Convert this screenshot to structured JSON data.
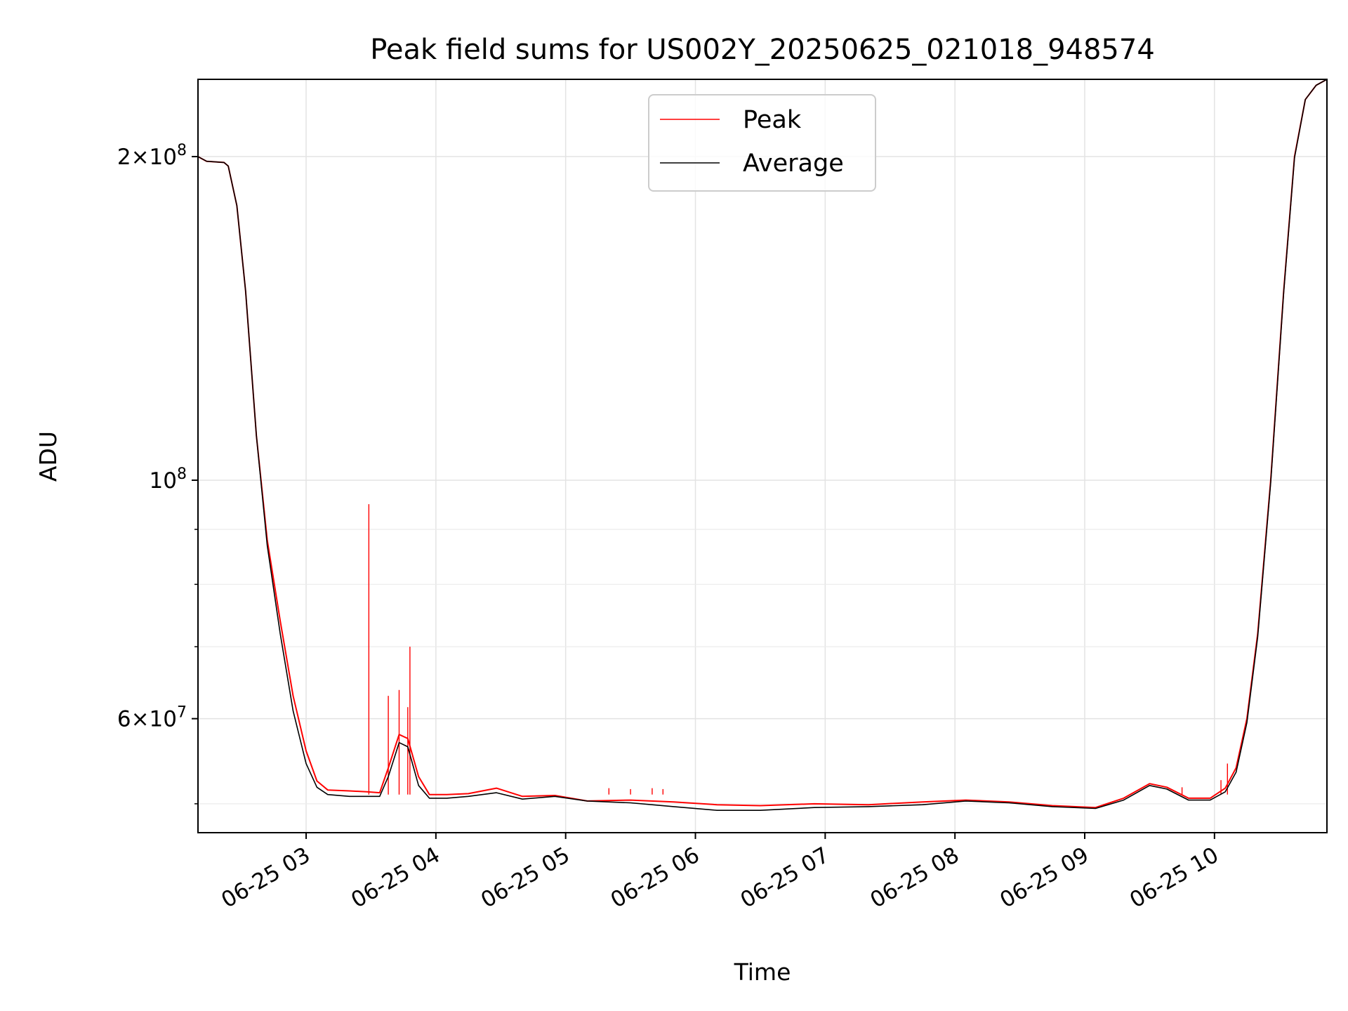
{
  "chart_data": {
    "type": "line",
    "title": "Peak field sums for US002Y_20250625_021018_948574",
    "xlabel": "Time",
    "ylabel": "ADU",
    "y_scale": "log",
    "grid": true,
    "legend_position": "top-center",
    "x_axis_type": "datetime",
    "x_range": [
      "2025-06-25T02:10",
      "2025-06-25T10:52"
    ],
    "ylim": [
      47000000,
      236000000
    ],
    "x_ticks": [
      {
        "t": "2025-06-25T03:00",
        "label": "06-25 03"
      },
      {
        "t": "2025-06-25T04:00",
        "label": "06-25 04"
      },
      {
        "t": "2025-06-25T05:00",
        "label": "06-25 05"
      },
      {
        "t": "2025-06-25T06:00",
        "label": "06-25 06"
      },
      {
        "t": "2025-06-25T07:00",
        "label": "06-25 07"
      },
      {
        "t": "2025-06-25T08:00",
        "label": "06-25 08"
      },
      {
        "t": "2025-06-25T09:00",
        "label": "06-25 09"
      },
      {
        "t": "2025-06-25T10:00",
        "label": "06-25 10"
      }
    ],
    "y_major_ticks": [
      {
        "value": 200000000,
        "mantissa": "2",
        "exponent": "8"
      },
      {
        "value": 100000000,
        "mantissa": "",
        "exponent": "8"
      },
      {
        "value": 60000000,
        "mantissa": "6",
        "exponent": "7"
      }
    ],
    "y_minor_ticks": [
      50000000,
      70000000,
      80000000,
      90000000
    ],
    "series": [
      {
        "name": "Peak",
        "color": "#ff0000",
        "values": [
          [
            "2025-06-25T02:10",
            200000000
          ],
          [
            "2025-06-25T02:14",
            198000000
          ],
          [
            "2025-06-25T02:22",
            197500000
          ],
          [
            "2025-06-25T02:24",
            196000000
          ],
          [
            "2025-06-25T02:28",
            180000000
          ],
          [
            "2025-06-25T02:32",
            150000000
          ],
          [
            "2025-06-25T02:37",
            110000000
          ],
          [
            "2025-06-25T02:42",
            88000000
          ],
          [
            "2025-06-25T02:48",
            74000000
          ],
          [
            "2025-06-25T02:54",
            63000000
          ],
          [
            "2025-06-25T03:00",
            56000000
          ],
          [
            "2025-06-25T03:05",
            52500000
          ],
          [
            "2025-06-25T03:10",
            51500000
          ],
          [
            "2025-06-25T03:20",
            51400000
          ],
          [
            "2025-06-25T03:28",
            51300000
          ],
          [
            "2025-06-25T03:34",
            51200000
          ],
          [
            "2025-06-25T03:38",
            54000000
          ],
          [
            "2025-06-25T03:43",
            58000000
          ],
          [
            "2025-06-25T03:47",
            57500000
          ],
          [
            "2025-06-25T03:52",
            53000000
          ],
          [
            "2025-06-25T03:57",
            51000000
          ],
          [
            "2025-06-25T04:05",
            51000000
          ],
          [
            "2025-06-25T04:15",
            51100000
          ],
          [
            "2025-06-25T04:28",
            51700000
          ],
          [
            "2025-06-25T04:40",
            50800000
          ],
          [
            "2025-06-25T04:55",
            50900000
          ],
          [
            "2025-06-25T05:10",
            50300000
          ],
          [
            "2025-06-25T05:30",
            50400000
          ],
          [
            "2025-06-25T05:50",
            50200000
          ],
          [
            "2025-06-25T06:10",
            49900000
          ],
          [
            "2025-06-25T06:30",
            49800000
          ],
          [
            "2025-06-25T06:55",
            50000000
          ],
          [
            "2025-06-25T07:20",
            49900000
          ],
          [
            "2025-06-25T07:45",
            50200000
          ],
          [
            "2025-06-25T08:05",
            50400000
          ],
          [
            "2025-06-25T08:25",
            50200000
          ],
          [
            "2025-06-25T08:45",
            49800000
          ],
          [
            "2025-06-25T09:05",
            49600000
          ],
          [
            "2025-06-25T09:18",
            50600000
          ],
          [
            "2025-06-25T09:30",
            52200000
          ],
          [
            "2025-06-25T09:38",
            51800000
          ],
          [
            "2025-06-25T09:48",
            50600000
          ],
          [
            "2025-06-25T09:58",
            50600000
          ],
          [
            "2025-06-25T10:05",
            51700000
          ],
          [
            "2025-06-25T10:10",
            54000000
          ],
          [
            "2025-06-25T10:15",
            60000000
          ],
          [
            "2025-06-25T10:20",
            72000000
          ],
          [
            "2025-06-25T10:26",
            100000000
          ],
          [
            "2025-06-25T10:32",
            150000000
          ],
          [
            "2025-06-25T10:37",
            200000000
          ],
          [
            "2025-06-25T10:42",
            226000000
          ],
          [
            "2025-06-25T10:47",
            233000000
          ],
          [
            "2025-06-25T10:52",
            236000000
          ]
        ],
        "spikes": [
          [
            "2025-06-25T03:29",
            95000000
          ],
          [
            "2025-06-25T03:38",
            63000000
          ],
          [
            "2025-06-25T03:43",
            63800000
          ],
          [
            "2025-06-25T03:47",
            61500000
          ],
          [
            "2025-06-25T03:48",
            70000000
          ],
          [
            "2025-06-25T05:20",
            51700000
          ],
          [
            "2025-06-25T05:30",
            51600000
          ],
          [
            "2025-06-25T05:40",
            51700000
          ],
          [
            "2025-06-25T05:45",
            51600000
          ],
          [
            "2025-06-25T09:45",
            51800000
          ],
          [
            "2025-06-25T10:03",
            52600000
          ],
          [
            "2025-06-25T10:06",
            54500000
          ]
        ]
      },
      {
        "name": "Average",
        "color": "#000000",
        "values": [
          [
            "2025-06-25T02:10",
            200000000
          ],
          [
            "2025-06-25T02:14",
            198000000
          ],
          [
            "2025-06-25T02:22",
            197500000
          ],
          [
            "2025-06-25T02:24",
            196000000
          ],
          [
            "2025-06-25T02:28",
            180000000
          ],
          [
            "2025-06-25T02:32",
            150000000
          ],
          [
            "2025-06-25T02:37",
            110000000
          ],
          [
            "2025-06-25T02:42",
            87000000
          ],
          [
            "2025-06-25T02:48",
            72000000
          ],
          [
            "2025-06-25T02:54",
            61000000
          ],
          [
            "2025-06-25T03:00",
            54500000
          ],
          [
            "2025-06-25T03:05",
            51800000
          ],
          [
            "2025-06-25T03:10",
            51000000
          ],
          [
            "2025-06-25T03:20",
            50800000
          ],
          [
            "2025-06-25T03:28",
            50800000
          ],
          [
            "2025-06-25T03:34",
            50800000
          ],
          [
            "2025-06-25T03:38",
            53000000
          ],
          [
            "2025-06-25T03:43",
            57000000
          ],
          [
            "2025-06-25T03:47",
            56500000
          ],
          [
            "2025-06-25T03:52",
            52000000
          ],
          [
            "2025-06-25T03:57",
            50600000
          ],
          [
            "2025-06-25T04:05",
            50600000
          ],
          [
            "2025-06-25T04:15",
            50800000
          ],
          [
            "2025-06-25T04:28",
            51200000
          ],
          [
            "2025-06-25T04:40",
            50500000
          ],
          [
            "2025-06-25T04:55",
            50800000
          ],
          [
            "2025-06-25T05:10",
            50300000
          ],
          [
            "2025-06-25T05:30",
            50100000
          ],
          [
            "2025-06-25T05:50",
            49700000
          ],
          [
            "2025-06-25T06:10",
            49300000
          ],
          [
            "2025-06-25T06:30",
            49300000
          ],
          [
            "2025-06-25T06:55",
            49600000
          ],
          [
            "2025-06-25T07:20",
            49700000
          ],
          [
            "2025-06-25T07:45",
            49900000
          ],
          [
            "2025-06-25T08:05",
            50300000
          ],
          [
            "2025-06-25T08:25",
            50100000
          ],
          [
            "2025-06-25T08:45",
            49700000
          ],
          [
            "2025-06-25T09:05",
            49500000
          ],
          [
            "2025-06-25T09:18",
            50400000
          ],
          [
            "2025-06-25T09:30",
            52000000
          ],
          [
            "2025-06-25T09:38",
            51600000
          ],
          [
            "2025-06-25T09:48",
            50400000
          ],
          [
            "2025-06-25T09:58",
            50400000
          ],
          [
            "2025-06-25T10:05",
            51300000
          ],
          [
            "2025-06-25T10:10",
            53500000
          ],
          [
            "2025-06-25T10:15",
            59500000
          ],
          [
            "2025-06-25T10:20",
            71500000
          ],
          [
            "2025-06-25T10:26",
            99500000
          ],
          [
            "2025-06-25T10:32",
            149500000
          ],
          [
            "2025-06-25T10:37",
            199500000
          ],
          [
            "2025-06-25T10:42",
            226000000
          ],
          [
            "2025-06-25T10:47",
            233000000
          ],
          [
            "2025-06-25T10:52",
            236000000
          ]
        ]
      }
    ]
  }
}
